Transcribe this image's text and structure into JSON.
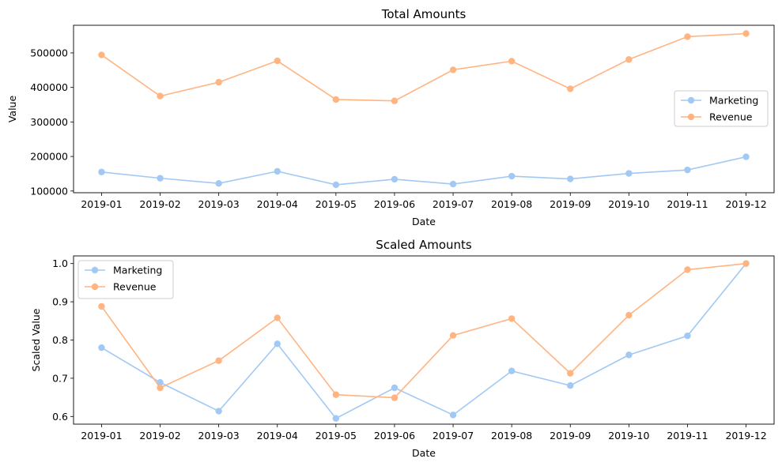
{
  "chart_data": [
    {
      "type": "line",
      "title": "Total Amounts",
      "xlabel": "Date",
      "ylabel": "Value",
      "categories": [
        "2019-01",
        "2019-02",
        "2019-03",
        "2019-04",
        "2019-05",
        "2019-06",
        "2019-07",
        "2019-08",
        "2019-09",
        "2019-10",
        "2019-11",
        "2019-12"
      ],
      "yticks": [
        100000,
        200000,
        300000,
        400000,
        500000
      ],
      "ytick_labels": [
        "100000",
        "200000",
        "300000",
        "400000",
        "500000"
      ],
      "ylim": [
        95000,
        580000
      ],
      "legend_position": "center-right",
      "grid": false,
      "series": [
        {
          "name": "Marketing",
          "color": "#a1c9f4",
          "values": [
            155000,
            137000,
            122000,
            157000,
            118000,
            134000,
            120000,
            143000,
            135000,
            151000,
            161000,
            199000
          ]
        },
        {
          "name": "Revenue",
          "color": "#ffb482",
          "values": [
            494000,
            375000,
            415000,
            477000,
            365000,
            361000,
            451000,
            476000,
            396000,
            481000,
            547000,
            556000
          ]
        }
      ]
    },
    {
      "type": "line",
      "title": "Scaled Amounts",
      "xlabel": "Date",
      "ylabel": "Scaled Value",
      "categories": [
        "2019-01",
        "2019-02",
        "2019-03",
        "2019-04",
        "2019-05",
        "2019-06",
        "2019-07",
        "2019-08",
        "2019-09",
        "2019-10",
        "2019-11",
        "2019-12"
      ],
      "yticks": [
        0.6,
        0.7,
        0.8,
        0.9,
        1.0
      ],
      "ytick_labels": [
        "0.6",
        "0.7",
        "0.8",
        "0.9",
        "1.0"
      ],
      "ylim": [
        0.58,
        1.02
      ],
      "legend_position": "upper-left",
      "grid": false,
      "series": [
        {
          "name": "Marketing",
          "color": "#a1c9f4",
          "values": [
            0.78,
            0.689,
            0.614,
            0.79,
            0.595,
            0.675,
            0.604,
            0.719,
            0.681,
            0.761,
            0.811,
            1.0
          ]
        },
        {
          "name": "Revenue",
          "color": "#ffb482",
          "values": [
            0.888,
            0.675,
            0.746,
            0.858,
            0.657,
            0.649,
            0.812,
            0.856,
            0.713,
            0.865,
            0.984,
            1.0
          ]
        }
      ]
    }
  ]
}
